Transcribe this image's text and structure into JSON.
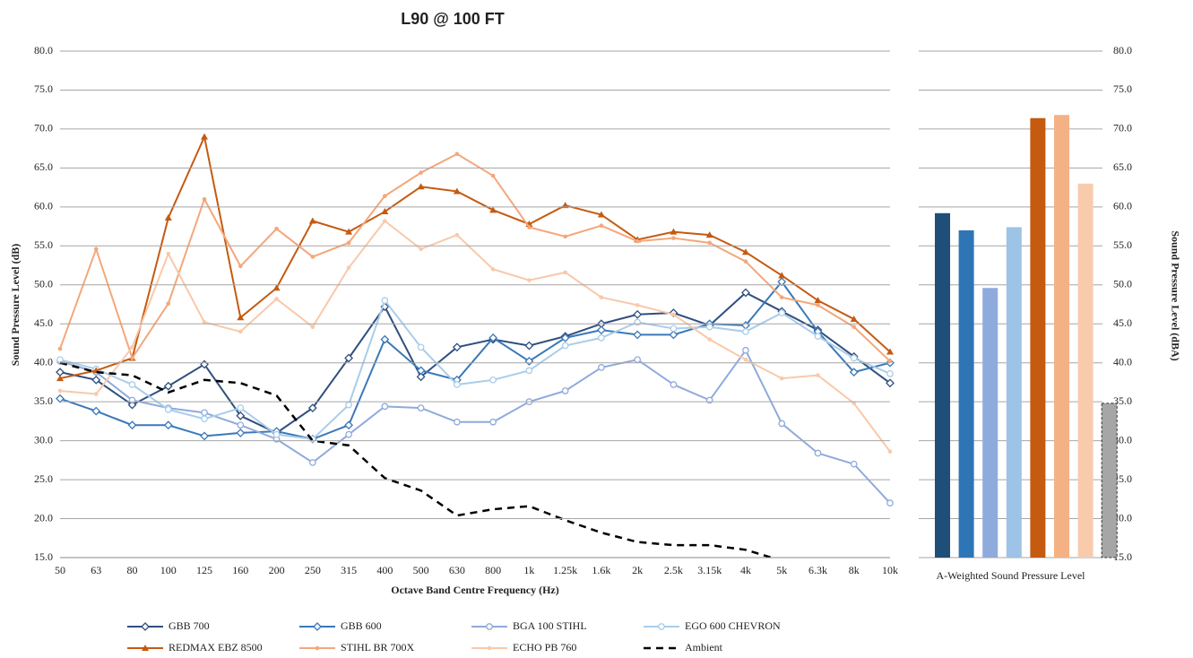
{
  "chart_data": [
    {
      "type": "line",
      "title": "L90 @ 100 FT",
      "ylabel": "Sound Pressure Level (dB)",
      "xlabel": "Octave Band Centre Frequency (Hz)",
      "categories": [
        "50",
        "63",
        "80",
        "100",
        "125",
        "160",
        "200",
        "250",
        "315",
        "400",
        "500",
        "630",
        "800",
        "1k",
        "1.25k",
        "1.6k",
        "2k",
        "2.5k",
        "3.15k",
        "4k",
        "5k",
        "6.3k",
        "8k",
        "10k"
      ],
      "ylim": [
        15,
        80
      ],
      "yticks": [
        {
          "value": 15,
          "label": "15.0"
        },
        {
          "value": 20,
          "label": "20.0"
        },
        {
          "value": 25,
          "label": "25.0"
        },
        {
          "value": 30,
          "label": "30.0"
        },
        {
          "value": 35,
          "label": "35.0"
        },
        {
          "value": 40,
          "label": "40.0"
        },
        {
          "value": 45,
          "label": "45.0"
        },
        {
          "value": 50,
          "label": "50.0"
        },
        {
          "value": 55,
          "label": "55.0"
        },
        {
          "value": 60,
          "label": "60.0"
        },
        {
          "value": 65,
          "label": "65.0"
        },
        {
          "value": 70,
          "label": "70.0"
        },
        {
          "value": 75,
          "label": "75.0"
        },
        {
          "value": 80,
          "label": "80.0"
        }
      ],
      "grid": true,
      "series": [
        {
          "name": "GBB 700",
          "color": "#2f4f7f",
          "marker": "diamond-open",
          "values": [
            38.8,
            37.8,
            34.6,
            37.0,
            39.8,
            33.2,
            31.0,
            34.2,
            40.6,
            47.2,
            38.2,
            42.0,
            43.0,
            42.2,
            43.4,
            45.0,
            46.2,
            46.4,
            44.8,
            49.0,
            46.6,
            44.2,
            40.8,
            37.4
          ]
        },
        {
          "name": "GBB 600",
          "color": "#3a78b8",
          "marker": "diamond-open",
          "values": [
            35.4,
            33.8,
            32.0,
            32.0,
            30.6,
            31.0,
            31.2,
            30.2,
            32.0,
            43.0,
            39.0,
            37.8,
            43.2,
            40.2,
            43.2,
            44.2,
            43.6,
            43.6,
            45.0,
            44.8,
            50.4,
            44.0,
            38.8,
            40.0
          ]
        },
        {
          "name": "BGA 100 STIHL",
          "color": "#8faadc",
          "marker": "circle-open",
          "values": [
            40.2,
            38.8,
            35.2,
            34.2,
            33.6,
            32.0,
            30.2,
            27.2,
            30.8,
            34.4,
            34.2,
            32.4,
            32.4,
            35.0,
            36.4,
            39.4,
            40.4,
            37.2,
            35.2,
            41.6,
            32.2,
            28.4,
            27.0,
            22.0
          ]
        },
        {
          "name": "EGO 600 CHEVRON",
          "color": "#a9cdea",
          "marker": "circle-open",
          "values": [
            40.4,
            39.2,
            37.2,
            34.0,
            32.8,
            34.2,
            30.8,
            30.2,
            34.6,
            48.0,
            42.0,
            37.2,
            37.8,
            39.0,
            42.2,
            43.2,
            45.2,
            44.4,
            44.6,
            44.0,
            46.4,
            43.4,
            40.6,
            38.6
          ]
        },
        {
          "name": "REDMAX EBZ 8500",
          "color": "#c55a11",
          "marker": "triangle",
          "values": [
            38.0,
            39.0,
            40.6,
            58.6,
            69.0,
            45.8,
            49.6,
            58.2,
            56.8,
            59.4,
            62.6,
            62.0,
            59.6,
            57.8,
            60.2,
            59.0,
            55.8,
            56.8,
            56.4,
            54.2,
            51.2,
            48.0,
            45.6,
            41.4
          ]
        },
        {
          "name": "STIHL BR 700X",
          "color": "#f4a77a",
          "marker": "dot",
          "values": [
            41.8,
            54.6,
            40.6,
            47.6,
            61.0,
            52.4,
            57.2,
            53.6,
            55.4,
            61.4,
            64.4,
            66.8,
            64.0,
            57.4,
            56.2,
            57.6,
            55.6,
            56.0,
            55.4,
            53.0,
            48.4,
            47.4,
            44.6,
            40.2
          ]
        },
        {
          "name": "ECHO PB 760",
          "color": "#f8c9aa",
          "marker": "dot",
          "values": [
            36.4,
            36.0,
            42.0,
            54.0,
            45.2,
            44.0,
            48.2,
            44.6,
            52.2,
            58.2,
            54.6,
            56.4,
            52.0,
            50.6,
            51.6,
            48.4,
            47.4,
            46.2,
            43.0,
            40.4,
            38.0,
            38.4,
            34.8,
            28.6
          ]
        },
        {
          "name": "Ambient",
          "color": "#000000",
          "marker": "none",
          "dashed": true,
          "values": [
            40.0,
            38.8,
            38.4,
            36.2,
            37.8,
            37.4,
            35.8,
            30.0,
            29.4,
            25.2,
            23.6,
            20.4,
            21.2,
            21.6,
            19.8,
            18.2,
            17.0,
            16.6,
            16.6,
            16.0,
            14.6,
            null,
            null,
            null
          ]
        }
      ]
    },
    {
      "type": "bar",
      "xlabel": "A-Weighted Sound Pressure Level",
      "ylabel": "Sound Pressure Level (dBA)",
      "ylim": [
        15,
        80
      ],
      "yticks": [
        {
          "value": 15,
          "label": "15.0"
        },
        {
          "value": 20,
          "label": "20.0"
        },
        {
          "value": 25,
          "label": "25.0"
        },
        {
          "value": 30,
          "label": "30.0"
        },
        {
          "value": 35,
          "label": "35.0"
        },
        {
          "value": 40,
          "label": "40.0"
        },
        {
          "value": 45,
          "label": "45.0"
        },
        {
          "value": 50,
          "label": "50.0"
        },
        {
          "value": 55,
          "label": "55.0"
        },
        {
          "value": 60,
          "label": "60.0"
        },
        {
          "value": 65,
          "label": "65.0"
        },
        {
          "value": 70,
          "label": "70.0"
        },
        {
          "value": 75,
          "label": "75.0"
        },
        {
          "value": 80,
          "label": "80.0"
        }
      ],
      "grid": true,
      "values": [
        59.2,
        57.0,
        49.6,
        57.4,
        71.4,
        71.8,
        63.0,
        34.8
      ],
      "colors": [
        "#1f4e79",
        "#2e75b6",
        "#8faadc",
        "#9dc3e6",
        "#c55a11",
        "#f4b183",
        "#f8cbad",
        "#a6a6a6"
      ],
      "dashed": [
        false,
        false,
        false,
        false,
        false,
        false,
        false,
        true
      ]
    }
  ]
}
